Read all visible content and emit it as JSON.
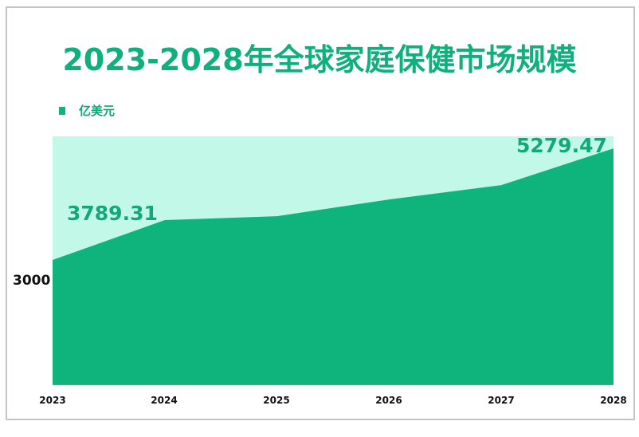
{
  "chart_data": {
    "type": "area",
    "title": "2023-2028年全球家庭保健市场规模",
    "categories": [
      "2023",
      "2024",
      "2025",
      "2026",
      "2027",
      "2028"
    ],
    "series": [
      {
        "name": "亿美元",
        "values": [
          2961,
          3789.31,
          3872,
          4220,
          4518,
          5279.47
        ]
      }
    ],
    "data_labels": [
      {
        "category": "2024",
        "text": "3789.31"
      },
      {
        "category": "2028",
        "text": "5279.47"
      }
    ],
    "xlabel": "",
    "ylabel": "",
    "y_ticks": [
      "3000"
    ],
    "ylim": [
      360,
      5530
    ],
    "legend_position": "top-left",
    "grid": false,
    "colors": {
      "area": "#0fb47d",
      "plot_bg": "#c2f8e8",
      "title": "#0fb07c"
    }
  },
  "title": "2023-2028年全球家庭保健市场规模",
  "legend": {
    "label": "亿美元"
  },
  "axis": {
    "y_tick": "3000",
    "x_ticks": [
      "2023",
      "2024",
      "2025",
      "2026",
      "2027",
      "2028"
    ]
  },
  "labels": {
    "first": "3789.31",
    "last": "5279.47"
  }
}
